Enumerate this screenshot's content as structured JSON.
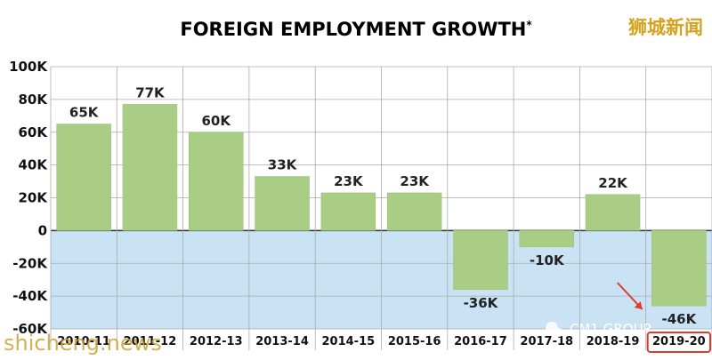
{
  "header": {
    "title": "FOREIGN EMPLOYMENT GROWTH",
    "title_mark": "*"
  },
  "watermarks": {
    "top_right": "狮城新闻",
    "bottom_left": "shicheng.news",
    "bottom_right": "CM1 GROUP"
  },
  "colors": {
    "bar": "#a9cd85",
    "bar_stroke": "#9cc176",
    "negative_zone": "#c9e3f5",
    "gridline": "#aaaaaa",
    "highlight": "#e03a2f",
    "arrow": "#e03a2f"
  },
  "chart_data": {
    "type": "bar",
    "title": "FOREIGN EMPLOYMENT GROWTH*",
    "categories": [
      "2010-11",
      "2011-12",
      "2012-13",
      "2013-14",
      "2014-15",
      "2015-16",
      "2016-17",
      "2017-18",
      "2018-19",
      "2019-20"
    ],
    "values": [
      65,
      77,
      60,
      33,
      23,
      23,
      -36,
      -10,
      22,
      -46
    ],
    "value_labels": [
      "65K",
      "77K",
      "60K",
      "33K",
      "23K",
      "23K",
      "-36K",
      "-10K",
      "22K",
      "-46K"
    ],
    "unit": "K",
    "ylim": [
      -60,
      100
    ],
    "yticks": [
      100,
      80,
      60,
      40,
      20,
      0,
      -20,
      -40,
      -60
    ],
    "ytick_labels": [
      "100K",
      "80K",
      "60K",
      "40K",
      "20K",
      "0",
      "-20K",
      "-40K",
      "-60K"
    ],
    "grid": true,
    "highlighted_category": "2019-20"
  }
}
